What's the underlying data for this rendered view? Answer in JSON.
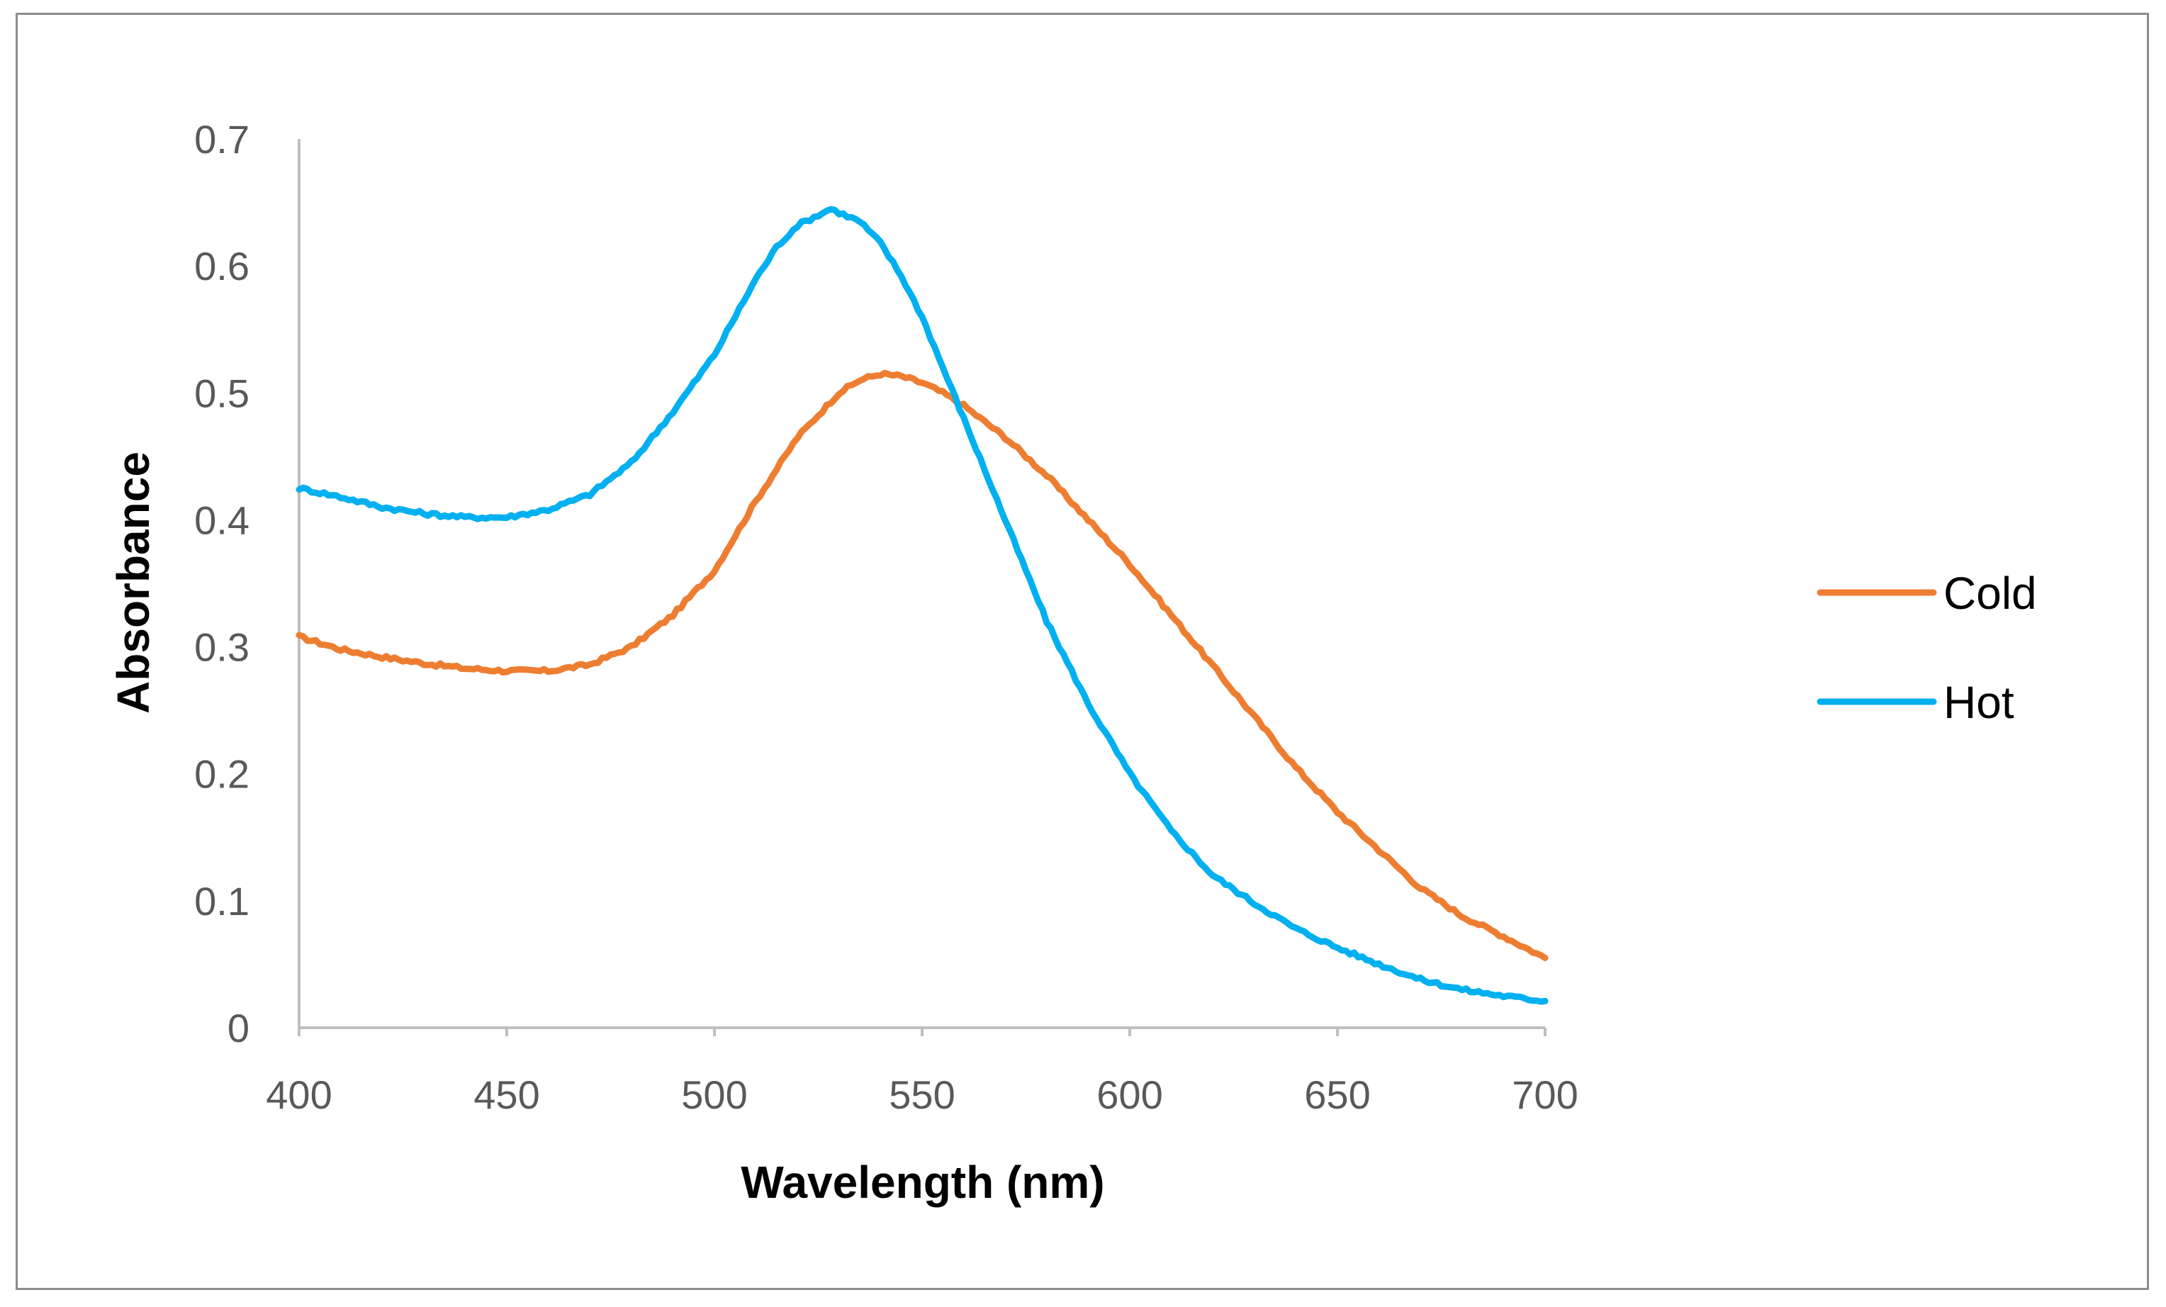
{
  "chart_data": {
    "type": "line",
    "title": "",
    "xlabel": "Wavelength (nm)",
    "ylabel": "Absorbance",
    "xlim": [
      400,
      700
    ],
    "ylim": [
      0,
      0.7
    ],
    "xticks": [
      400,
      450,
      500,
      550,
      600,
      650,
      700
    ],
    "yticks": [
      0,
      0.1,
      0.2,
      0.3,
      0.4,
      0.5,
      0.6,
      0.7
    ],
    "xtick_labels": [
      "400",
      "450",
      "500",
      "550",
      "600",
      "650",
      "700"
    ],
    "ytick_labels": [
      "0",
      "0.1",
      "0.2",
      "0.3",
      "0.4",
      "0.5",
      "0.6",
      "0.7"
    ],
    "grid": false,
    "legend_position": "right",
    "series": [
      {
        "name": "Cold",
        "color": "#ED7D31",
        "x": [
          400,
          410,
          420,
          430,
          440,
          450,
          460,
          470,
          480,
          490,
          500,
          510,
          520,
          530,
          535,
          540,
          545,
          550,
          555,
          560,
          570,
          580,
          590,
          600,
          610,
          620,
          630,
          640,
          650,
          660,
          670,
          680,
          690,
          700
        ],
        "y": [
          0.308,
          0.298,
          0.292,
          0.287,
          0.283,
          0.281,
          0.281,
          0.286,
          0.3,
          0.325,
          0.36,
          0.415,
          0.465,
          0.5,
          0.51,
          0.515,
          0.513,
          0.508,
          0.5,
          0.49,
          0.465,
          0.435,
          0.4,
          0.365,
          0.325,
          0.285,
          0.245,
          0.205,
          0.17,
          0.14,
          0.11,
          0.088,
          0.072,
          0.055
        ]
      },
      {
        "name": "Hot",
        "color": "#00B0F0",
        "x": [
          400,
          410,
          420,
          430,
          440,
          450,
          460,
          470,
          480,
          490,
          500,
          505,
          510,
          515,
          520,
          525,
          528,
          530,
          535,
          540,
          545,
          550,
          555,
          560,
          570,
          580,
          590,
          600,
          610,
          620,
          630,
          640,
          650,
          660,
          670,
          680,
          690,
          700
        ],
        "y": [
          0.425,
          0.418,
          0.41,
          0.405,
          0.402,
          0.402,
          0.408,
          0.42,
          0.445,
          0.485,
          0.53,
          0.56,
          0.59,
          0.615,
          0.632,
          0.64,
          0.645,
          0.642,
          0.635,
          0.618,
          0.592,
          0.56,
          0.52,
          0.48,
          0.4,
          0.32,
          0.255,
          0.2,
          0.155,
          0.12,
          0.098,
          0.078,
          0.063,
          0.05,
          0.038,
          0.03,
          0.025,
          0.021
        ]
      }
    ]
  }
}
